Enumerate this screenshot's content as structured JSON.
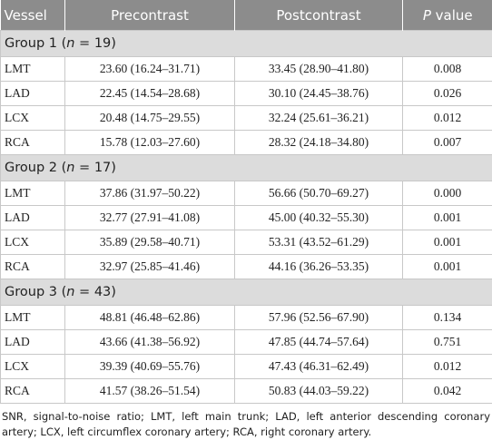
{
  "header": {
    "vessel": "Vessel",
    "precontrast": "Precontrast",
    "postcontrast": "Postcontrast",
    "p_value": {
      "symbol": "P",
      "text": "value"
    }
  },
  "groups": [
    {
      "label": {
        "prefix": "Group 1 (",
        "var": "n",
        "suffix": " = 19)"
      },
      "rows": [
        [
          "LMT",
          "23.60 (16.24–31.71)",
          "33.45 (28.90–41.80)",
          "0.008"
        ],
        [
          "LAD",
          "22.45 (14.54–28.68)",
          "30.10 (24.45–38.76)",
          "0.026"
        ],
        [
          "LCX",
          "20.48 (14.75–29.55)",
          "32.24 (25.61–36.21)",
          "0.012"
        ],
        [
          "RCA",
          "15.78 (12.03–27.60)",
          "28.32 (24.18–34.80)",
          "0.007"
        ]
      ]
    },
    {
      "label": {
        "prefix": "Group 2 (",
        "var": "n",
        "suffix": " = 17)"
      },
      "rows": [
        [
          "LMT",
          "37.86 (31.97–50.22)",
          "56.66 (50.70–69.27)",
          "0.000"
        ],
        [
          "LAD",
          "32.77 (27.91–41.08)",
          "45.00 (40.32–55.30)",
          "0.001"
        ],
        [
          "LCX",
          "35.89 (29.58–40.71)",
          "53.31 (43.52–61.29)",
          "0.001"
        ],
        [
          "RCA",
          "32.97 (25.85–41.46)",
          "44.16 (36.26–53.35)",
          "0.001"
        ]
      ]
    },
    {
      "label": {
        "prefix": "Group 3 (",
        "var": "n",
        "suffix": " = 43)"
      },
      "rows": [
        [
          "LMT",
          "48.81 (46.48–62.86)",
          "57.96 (52.56–67.90)",
          "0.134"
        ],
        [
          "LAD",
          "43.66 (41.38–56.92)",
          "47.85 (44.74–57.64)",
          "0.751"
        ],
        [
          "LCX",
          "39.39 (40.69–55.76)",
          "47.43 (46.31–62.49)",
          "0.012"
        ],
        [
          "RCA",
          "41.57 (38.26–51.54)",
          "50.83 (44.03–59.22)",
          "0.042"
        ]
      ]
    }
  ],
  "footnote": "SNR, signal-to-noise ratio; LMT, left main trunk; LAD, left anterior descending coronary artery; LCX, left circumflex coronary artery; RCA, right coronary artery."
}
